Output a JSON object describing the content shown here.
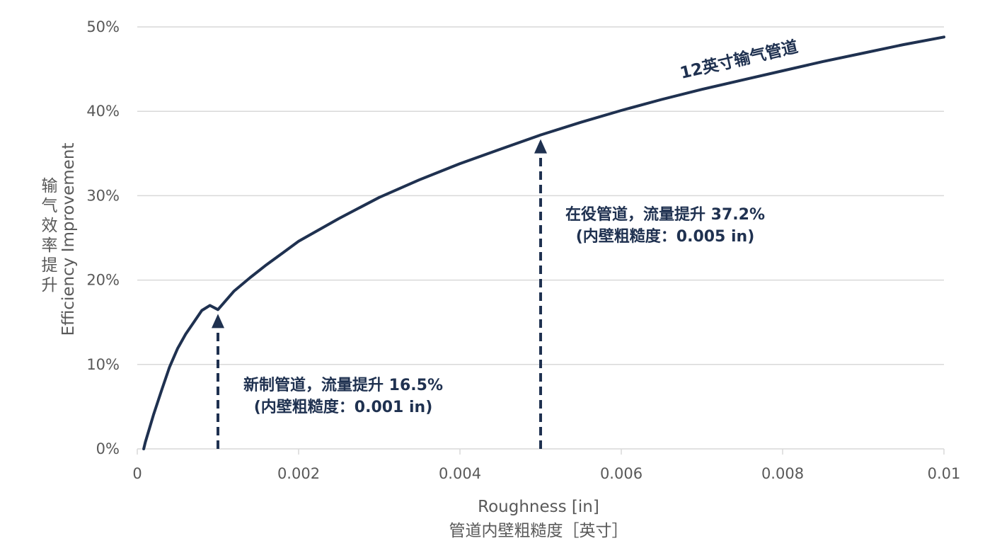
{
  "chart_data": {
    "type": "line",
    "xlabel_en": "Roughness [in]",
    "xlabel_zh": "管道内壁粗糙度［英寸］",
    "ylabel_en": "Efficiency Improvement",
    "ylabel_zh": "输气效率提升",
    "xlim": [
      0,
      0.01
    ],
    "ylim": [
      0,
      50
    ],
    "x_ticks": [
      "0",
      "0.002",
      "0.004",
      "0.006",
      "0.008",
      "0.01"
    ],
    "y_ticks": [
      "0%",
      "10%",
      "20%",
      "30%",
      "40%",
      "50%"
    ],
    "grid": true,
    "series": [
      {
        "name": "12英寸输气管道",
        "color": "#1f3150",
        "x": [
          8e-05,
          0.0001,
          0.0002,
          0.0003,
          0.0004,
          0.0005,
          0.0006,
          0.0007,
          0.0008,
          0.0009,
          0.001,
          0.0012,
          0.0014,
          0.0016,
          0.0018,
          0.002,
          0.0025,
          0.003,
          0.0035,
          0.004,
          0.0045,
          0.005,
          0.0055,
          0.006,
          0.0065,
          0.007,
          0.0075,
          0.008,
          0.0085,
          0.009,
          0.0095,
          0.01
        ],
        "y": [
          0,
          0.8,
          4.0,
          6.9,
          9.7,
          11.9,
          13.6,
          15.0,
          16.4,
          17.0,
          16.5,
          18.7,
          20.3,
          21.8,
          23.2,
          24.6,
          27.3,
          29.8,
          31.9,
          33.8,
          35.5,
          37.2,
          38.7,
          40.1,
          41.4,
          42.6,
          43.7,
          44.8,
          45.9,
          46.9,
          47.9,
          48.8
        ]
      }
    ],
    "annotations": [
      {
        "x": 0.001,
        "y": 16.5,
        "line1": "新制管道，流量提升 16.5%",
        "line2": "(内壁粗糙度：0.001 in)"
      },
      {
        "x": 0.005,
        "y": 37.2,
        "line1": "在役管道，流量提升 37.2%",
        "line2": "(内壁粗糙度：0.005 in)"
      }
    ]
  },
  "colors": {
    "line": "#1f3150",
    "grid": "#d9d9d9",
    "text": "#595959"
  }
}
